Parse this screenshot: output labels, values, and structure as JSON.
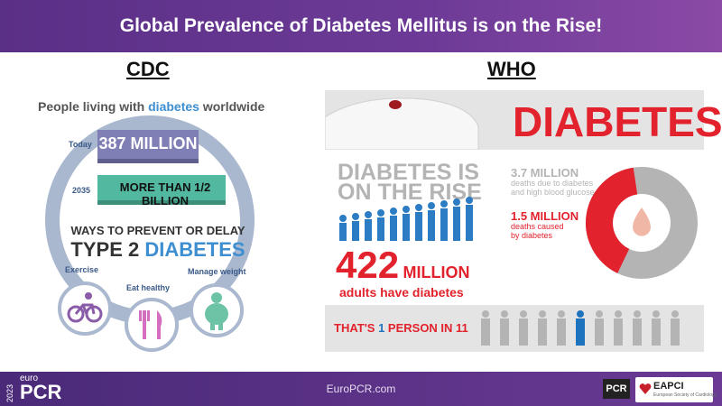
{
  "header": {
    "title": "Global Prevalence of Diabetes Mellitus is on the Rise!"
  },
  "columns": {
    "left_heading": "CDC",
    "right_heading": "WHO"
  },
  "cdc": {
    "headline_prefix": "People living with ",
    "headline_highlight": "diabetes",
    "headline_suffix": " worldwide",
    "today_label": "Today",
    "today_value": "387 MILLION",
    "future_label": "2035",
    "future_value": "MORE THAN 1/2 BILLION",
    "ways_line1": "WAYS TO PREVENT OR DELAY",
    "ways_line2_prefix": "TYPE 2 ",
    "ways_line2_highlight": "DIABETES",
    "tips": [
      {
        "label": "Exercise",
        "icon": "bicycle-icon"
      },
      {
        "label": "Eat healthy",
        "icon": "fork-knife-icon"
      },
      {
        "label": "Manage weight",
        "icon": "person-weight-icon"
      }
    ],
    "colors": {
      "ring": "#a9b8cf",
      "today_bar": "#7f7fb5",
      "future_bar": "#52b8a0",
      "accent": "#3d8fd1"
    }
  },
  "who": {
    "banner_word": "DIABETES",
    "rise_line1": "DIABETES IS",
    "rise_line2": "ON THE RISE",
    "adults_value": "422",
    "adults_unit": "MILLION",
    "adults_caption": "adults have diabetes",
    "deaths_total_value": "3.7 MILLION",
    "deaths_total_caption_1": "deaths due to diabetes",
    "deaths_total_caption_2": "and high blood glucose",
    "deaths_diabetes_value": "1.5 MILLION",
    "deaths_diabetes_caption_1": "deaths caused",
    "deaths_diabetes_caption_2": "by diabetes",
    "deaths_share_fraction": 0.405,
    "ratio_prefix": "THAT'S ",
    "ratio_number": "1",
    "ratio_suffix": " PERSON IN 11",
    "colors": {
      "red": "#e2222c",
      "blue": "#1e73be",
      "grey": "#b4b4b4"
    }
  },
  "footer": {
    "year": "2023",
    "brand_small": "euro",
    "brand": "PCR",
    "url": "EuroPCR.com",
    "logo1": "PCR",
    "logo2": "EAPCI",
    "logo2_sub": "European Society of Cardiology"
  }
}
